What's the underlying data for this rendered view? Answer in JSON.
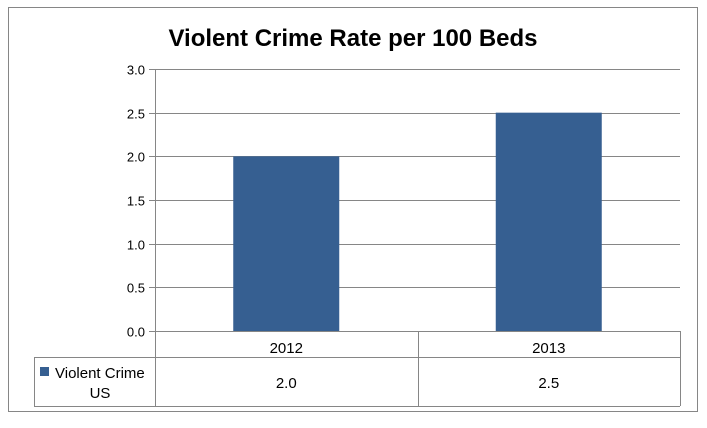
{
  "chart_data": {
    "type": "bar",
    "title": "Violent Crime Rate per 100 Beds",
    "categories": [
      "2012",
      "2013"
    ],
    "series": [
      {
        "name": "Violent Crime US",
        "name_lines": [
          "Violent Crime",
          "US"
        ],
        "values": [
          2.0,
          2.5
        ],
        "value_labels": [
          "2.0",
          "2.5"
        ],
        "color": "#365f91"
      }
    ],
    "ylim": [
      0,
      3.0
    ],
    "y_ticks": [
      {
        "value": 0,
        "label": "0.0"
      },
      {
        "value": 0.5,
        "label": "0.5"
      },
      {
        "value": 1.0,
        "label": "1.0"
      },
      {
        "value": 1.5,
        "label": "1.5"
      },
      {
        "value": 2.0,
        "label": "2.0"
      },
      {
        "value": 2.5,
        "label": "2.5"
      },
      {
        "value": 3.0,
        "label": "3.0"
      }
    ],
    "grid": true,
    "legend": "data-table",
    "xlabel": "",
    "ylabel": ""
  },
  "colors": {
    "bar": "#365f91",
    "grid": "#868686",
    "border": "#868686",
    "text": "#000000"
  }
}
